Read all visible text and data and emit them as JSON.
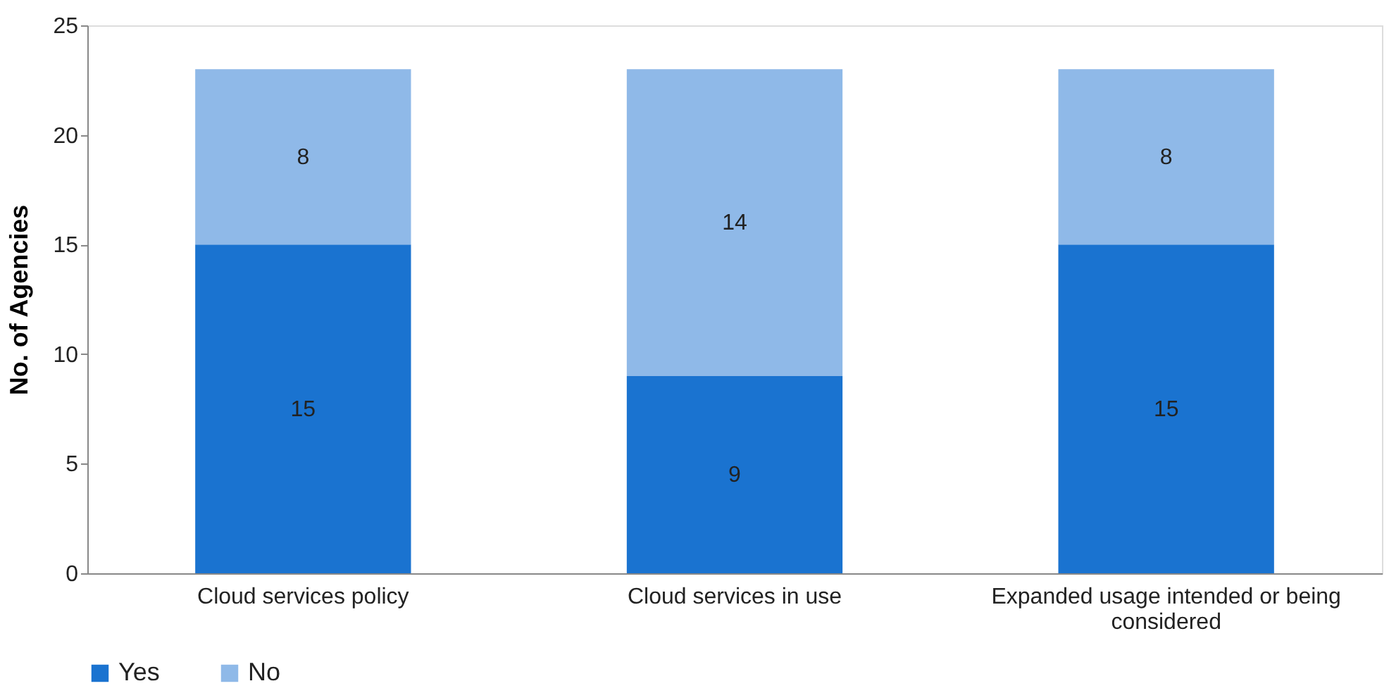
{
  "chart_data": {
    "type": "bar",
    "stacked": true,
    "ylabel": "No. of Agencies",
    "categories": [
      "Cloud services policy",
      "Cloud services in use",
      "Expanded usage intended or being considered"
    ],
    "series": [
      {
        "name": "Yes",
        "color": "#1a73d0",
        "values": [
          15,
          9,
          15
        ]
      },
      {
        "name": "No",
        "color": "#8fb9e8",
        "values": [
          8,
          14,
          8
        ]
      }
    ],
    "ylim": [
      0,
      25
    ],
    "yticks": [
      0,
      5,
      10,
      15,
      20,
      25
    ],
    "grid": false,
    "legend": "bottom left",
    "data_labels": true
  }
}
